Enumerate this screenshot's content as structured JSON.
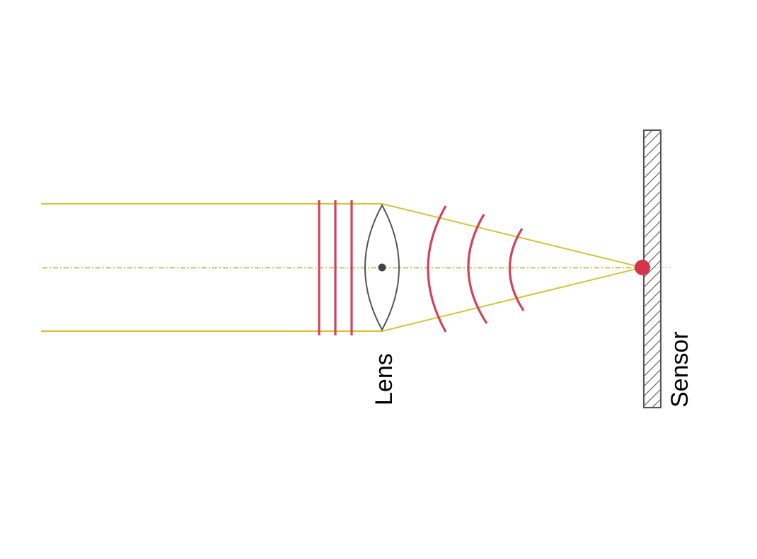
{
  "labels": {
    "lens": "Lens",
    "sensor": "Sensor"
  },
  "colors": {
    "ray": "#d4c33f",
    "axis": "#b8ad3a",
    "wavefront": "#d1435b",
    "focal_point": "#d6334f",
    "lens_outline": "#555555",
    "sensor_outline": "#555555",
    "hatch": "#666666",
    "background": "#ffffff"
  }
}
